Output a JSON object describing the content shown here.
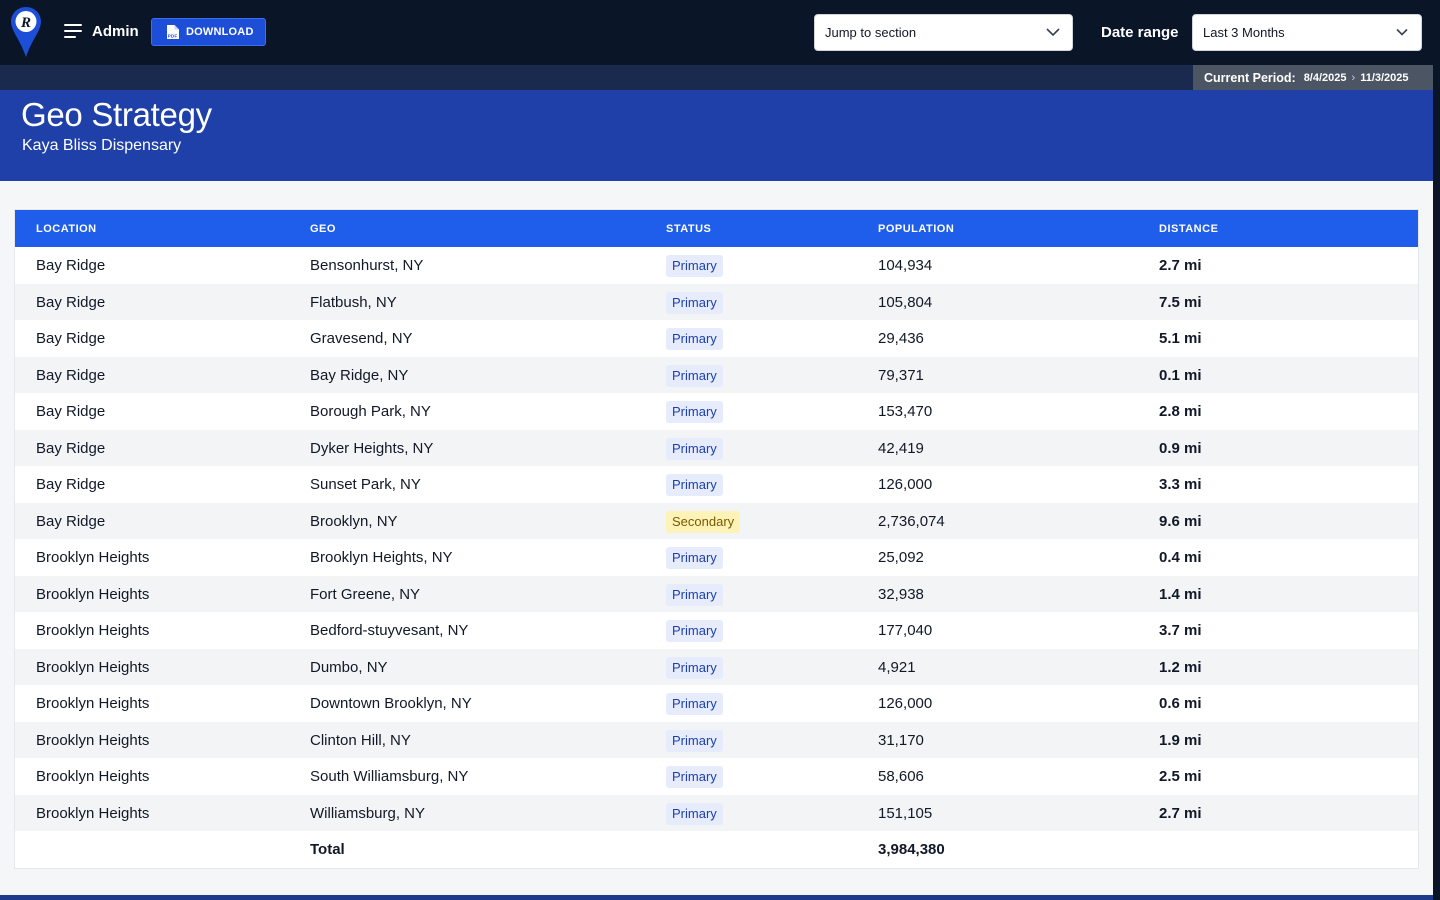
{
  "header": {
    "admin_label": "Admin",
    "download_label": "DOWNLOAD",
    "jump_select": {
      "value": "Jump to section"
    },
    "date_range_label": "Date range",
    "date_range_select": {
      "value": "Last 3 Months"
    },
    "current_period_label": "Current Period:",
    "period_start": "8/4/2025",
    "period_end": "11/3/2025"
  },
  "hero": {
    "title": "Geo Strategy",
    "subtitle": "Kaya Bliss Dispensary"
  },
  "table": {
    "columns": [
      "LOCATION",
      "GEO",
      "STATUS",
      "POPULATION",
      "DISTANCE"
    ],
    "rows": [
      {
        "location": "Bay Ridge",
        "geo": "Bensonhurst, NY",
        "status": "Primary",
        "population": "104,934",
        "distance": "2.7 mi"
      },
      {
        "location": "Bay Ridge",
        "geo": "Flatbush, NY",
        "status": "Primary",
        "population": "105,804",
        "distance": "7.5 mi"
      },
      {
        "location": "Bay Ridge",
        "geo": "Gravesend, NY",
        "status": "Primary",
        "population": "29,436",
        "distance": "5.1 mi"
      },
      {
        "location": "Bay Ridge",
        "geo": "Bay Ridge, NY",
        "status": "Primary",
        "population": "79,371",
        "distance": "0.1 mi"
      },
      {
        "location": "Bay Ridge",
        "geo": "Borough Park, NY",
        "status": "Primary",
        "population": "153,470",
        "distance": "2.8 mi"
      },
      {
        "location": "Bay Ridge",
        "geo": "Dyker Heights, NY",
        "status": "Primary",
        "population": "42,419",
        "distance": "0.9 mi"
      },
      {
        "location": "Bay Ridge",
        "geo": "Sunset Park, NY",
        "status": "Primary",
        "population": "126,000",
        "distance": "3.3 mi"
      },
      {
        "location": "Bay Ridge",
        "geo": "Brooklyn, NY",
        "status": "Secondary",
        "population": "2,736,074",
        "distance": "9.6 mi"
      },
      {
        "location": "Brooklyn Heights",
        "geo": "Brooklyn Heights, NY",
        "status": "Primary",
        "population": "25,092",
        "distance": "0.4 mi"
      },
      {
        "location": "Brooklyn Heights",
        "geo": "Fort Greene, NY",
        "status": "Primary",
        "population": "32,938",
        "distance": "1.4 mi"
      },
      {
        "location": "Brooklyn Heights",
        "geo": "Bedford-stuyvesant, NY",
        "status": "Primary",
        "population": "177,040",
        "distance": "3.7 mi"
      },
      {
        "location": "Brooklyn Heights",
        "geo": "Dumbo, NY",
        "status": "Primary",
        "population": "4,921",
        "distance": "1.2 mi"
      },
      {
        "location": "Brooklyn Heights",
        "geo": "Downtown Brooklyn, NY",
        "status": "Primary",
        "population": "126,000",
        "distance": "0.6 mi"
      },
      {
        "location": "Brooklyn Heights",
        "geo": "Clinton Hill, NY",
        "status": "Primary",
        "population": "31,170",
        "distance": "1.9 mi"
      },
      {
        "location": "Brooklyn Heights",
        "geo": "South Williamsburg, NY",
        "status": "Primary",
        "population": "58,606",
        "distance": "2.5 mi"
      },
      {
        "location": "Brooklyn Heights",
        "geo": "Williamsburg, NY",
        "status": "Primary",
        "population": "151,105",
        "distance": "2.7 mi"
      }
    ],
    "total": {
      "label": "Total",
      "population": "3,984,380"
    }
  },
  "colors": {
    "topbar": "#0a1628",
    "hero": "#1e40a8",
    "table_header": "#1f5eea",
    "primary_badge_bg": "#e6ecfb",
    "primary_badge_text": "#1e40af",
    "secondary_badge_bg": "#fdf3b8",
    "secondary_badge_text": "#7c5a00"
  },
  "icons": {
    "logo": "brand-logo-icon",
    "menu": "hamburger-menu-icon",
    "download": "pdf-file-icon",
    "dropdown": "chevron-down-icon",
    "period_separator": "chevron-right-icon"
  }
}
